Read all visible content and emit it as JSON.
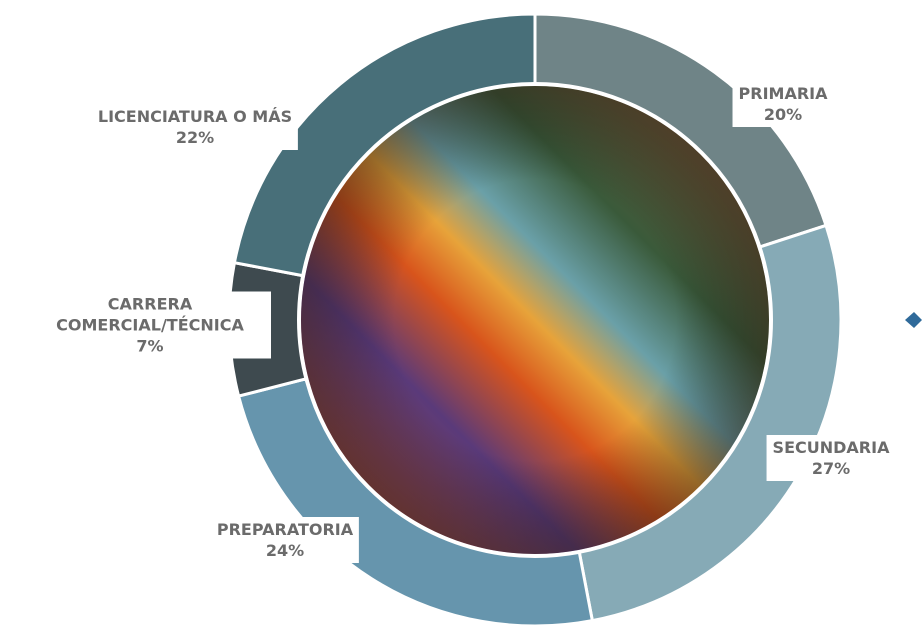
{
  "chart_data": {
    "type": "donut",
    "categories": [
      "PRIMARIA",
      "SECUNDARIA",
      "PREPARATORIA",
      "CARRERA COMERCIAL/TÉCNICA",
      "LICENCIATURA O MÁS"
    ],
    "values": [
      20,
      27,
      24,
      7,
      22
    ],
    "value_labels": [
      "20%",
      "27%",
      "24%",
      "7%",
      "22%"
    ],
    "colors": [
      "#6f8487",
      "#86aab6",
      "#6695ad",
      "#3e4a4f",
      "#486f79"
    ]
  }
}
